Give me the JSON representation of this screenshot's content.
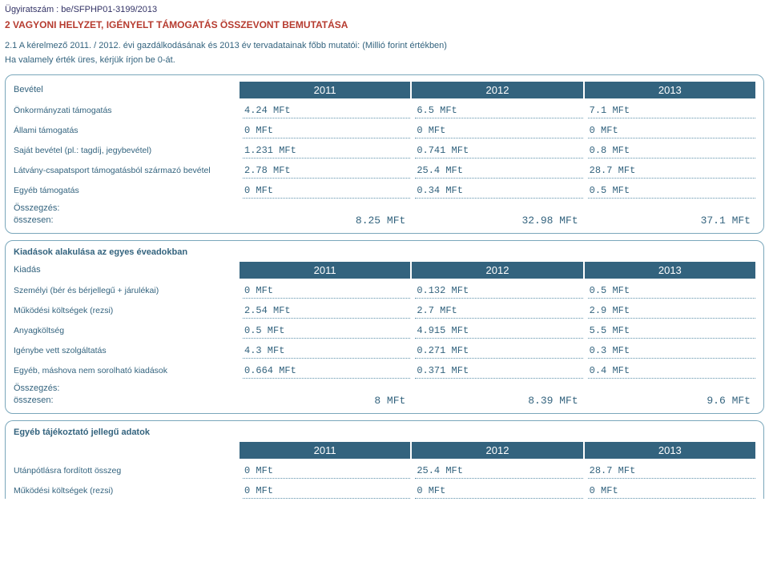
{
  "caseNumber": "Ügyiratszám : be/SFPHP01-3199/2013",
  "sectionTitle": "2 VAGYONI HELYZET, IGÉNYELT TÁMOGATÁS ÖSSZEVONT BEMUTATÁSA",
  "introLine1": "2.1 A kérelmező 2011. / 2012. évi gazdálkodásának és 2013 év tervadatainak főbb mutatói: (Millió forint értékben)",
  "introLine2": "Ha valamely érték üres, kérjük írjon be 0-át.",
  "colors": {
    "accent": "#33637e",
    "border": "#7aa7bb",
    "title": "#b63b2f"
  },
  "panel1": {
    "headerLabel": "Bevétel",
    "years": [
      "2011",
      "2012",
      "2013"
    ],
    "rows": [
      {
        "label": "Önkormányzati támogatás",
        "v": [
          "4.24 MFt",
          "6.5 MFt",
          "7.1 MFt"
        ]
      },
      {
        "label": "Állami támogatás",
        "v": [
          "0 MFt",
          "0 MFt",
          "0 MFt"
        ]
      },
      {
        "label": "Saját bevétel (pl.: tagdíj, jegybevétel)",
        "v": [
          "1.231 MFt",
          "0.741 MFt",
          "0.8 MFt"
        ]
      },
      {
        "label": "Látvány-csapatsport támogatásból származó bevétel",
        "v": [
          "2.78 MFt",
          "25.4 MFt",
          "28.7 MFt"
        ]
      },
      {
        "label": "Egyéb támogatás",
        "v": [
          "0 MFt",
          "0.34 MFt",
          "0.5 MFt"
        ]
      }
    ],
    "sumHeading": "Összegzés:",
    "sumLabel": "összesen:",
    "sumValues": [
      "8.25  MFt",
      "32.98  MFt",
      "37.1  MFt"
    ]
  },
  "panel2": {
    "subtitle": "Kiadások alakulása az egyes éveadokban",
    "headerLabel": "Kiadás",
    "years": [
      "2011",
      "2012",
      "2013"
    ],
    "rows": [
      {
        "label": "Személyi (bér és bérjellegű + járulékai)",
        "v": [
          "0 MFt",
          "0.132 MFt",
          "0.5 MFt"
        ]
      },
      {
        "label": "Működési költségek (rezsi)",
        "v": [
          "2.54 MFt",
          "2.7 MFt",
          "2.9 MFt"
        ]
      },
      {
        "label": "Anyagköltség",
        "v": [
          "0.5 MFt",
          "4.915 MFt",
          "5.5 MFt"
        ]
      },
      {
        "label": "Igénybe vett szolgáltatás",
        "v": [
          "4.3 MFt",
          "0.271 MFt",
          "0.3 MFt"
        ]
      },
      {
        "label": "Egyéb, máshova nem sorolható kiadások",
        "v": [
          "0.664 MFt",
          "0.371 MFt",
          "0.4 MFt"
        ]
      }
    ],
    "sumHeading": "Összegzés:",
    "sumLabel": "összesen:",
    "sumValues": [
      "8  MFt",
      "8.39  MFt",
      "9.6  MFt"
    ]
  },
  "panel3": {
    "subtitle": "Egyéb tájékoztató jellegű adatok",
    "headerLabel": "",
    "years": [
      "2011",
      "2012",
      "2013"
    ],
    "rows": [
      {
        "label": "Utánpótlásra fordított összeg",
        "v": [
          "0 MFt",
          "25.4 MFt",
          "28.7 MFt"
        ]
      },
      {
        "label": "Működési költségek (rezsi)",
        "v": [
          "0 MFt",
          "0 MFt",
          "0 MFt"
        ]
      }
    ]
  }
}
